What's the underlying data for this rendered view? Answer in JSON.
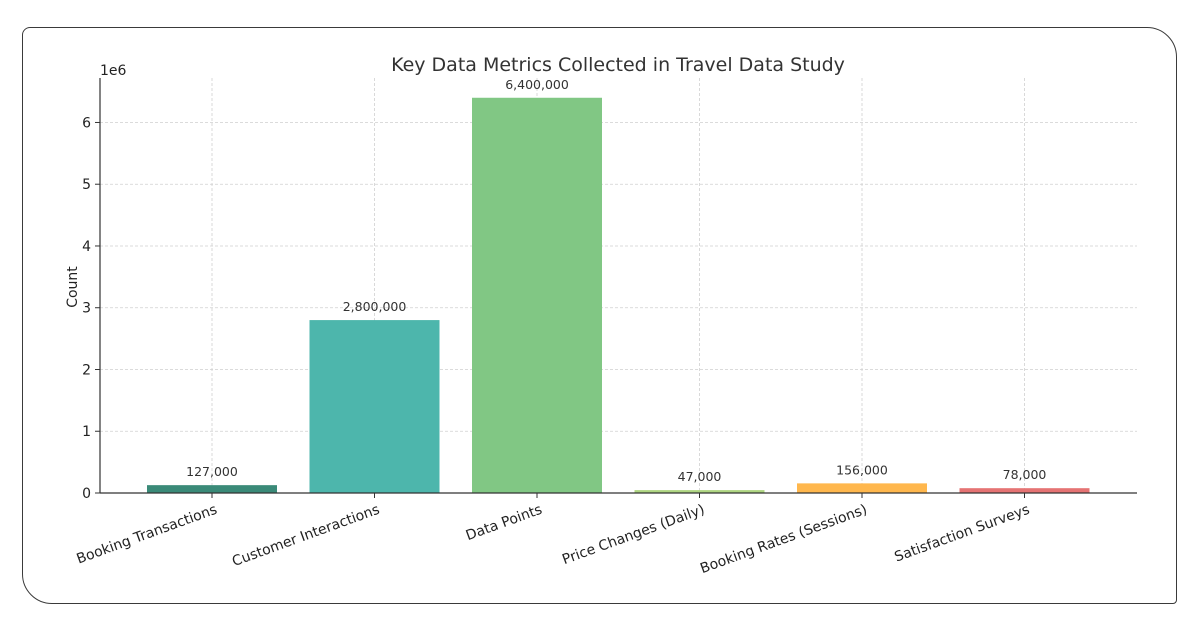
{
  "chart_data": {
    "type": "bar",
    "title": "Key Data Metrics Collected in Travel Data Study",
    "xlabel": "",
    "ylabel": "Count",
    "y_offset_label": "1e6",
    "ylim": [
      0,
      6720000
    ],
    "y_ticks": [
      0,
      1,
      2,
      3,
      4,
      5,
      6
    ],
    "grid": true,
    "grid_style": "dashed",
    "legend": null,
    "categories": [
      "Booking Transactions",
      "Customer Interactions",
      "Data Points",
      "Price Changes (Daily)",
      "Booking Rates (Sessions)",
      "Satisfaction Surveys"
    ],
    "values": [
      127000,
      2800000,
      6400000,
      47000,
      156000,
      78000
    ],
    "value_labels": [
      "127,000",
      "2,800,000",
      "6,400,000",
      "47,000",
      "156,000",
      "78,000"
    ],
    "colors": [
      "#3a8a78",
      "#4db6ac",
      "#81c784",
      "#aed581",
      "#ffb74d",
      "#e57373"
    ],
    "x_tick_rotation": 20
  }
}
